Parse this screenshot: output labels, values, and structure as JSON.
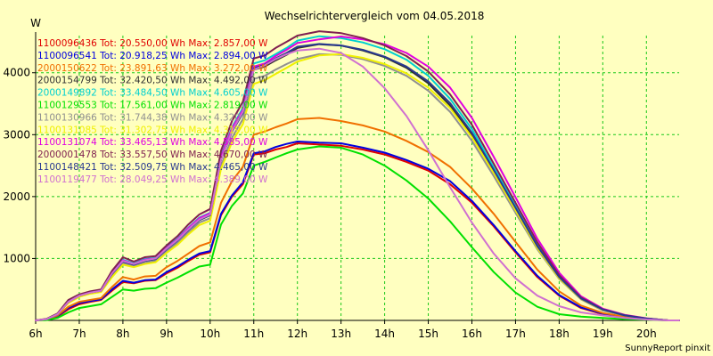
{
  "chart_data": {
    "type": "line",
    "title": "Wechselrichtervergleich vom 04.05.2018",
    "ylabel": "W",
    "footer": "SunnyReport pinxit",
    "x_tick_labels": [
      "6h",
      "7h",
      "8h",
      "9h",
      "10h",
      "11h",
      "12h",
      "13h",
      "14h",
      "15h",
      "16h",
      "17h",
      "18h",
      "19h",
      "20h"
    ],
    "x_range_hours": [
      6.0,
      20.75
    ],
    "y_ticks": [
      1000,
      2000,
      3000,
      4000
    ],
    "ylim": [
      0,
      4600
    ],
    "grid": true,
    "legend_placement": "top-left",
    "x_hours": [
      6.0,
      6.25,
      6.5,
      6.75,
      7.0,
      7.25,
      7.5,
      7.75,
      8.0,
      8.25,
      8.5,
      8.75,
      9.0,
      9.25,
      9.5,
      9.75,
      10.0,
      10.25,
      10.5,
      10.75,
      11.0,
      11.25,
      11.5,
      11.75,
      12.0,
      12.5,
      13.0,
      13.5,
      14.0,
      14.5,
      15.0,
      15.5,
      16.0,
      16.5,
      17.0,
      17.5,
      18.0,
      18.5,
      19.0,
      19.5,
      20.0,
      20.5,
      20.75
    ],
    "series": [
      {
        "legend": "1100096436 Tot: 20.550,00 Wh Max: 2.857,00 W",
        "color": "#e00000",
        "values": [
          0,
          10,
          60,
          180,
          260,
          300,
          330,
          480,
          620,
          600,
          640,
          650,
          760,
          850,
          960,
          1060,
          1100,
          1700,
          2000,
          2200,
          2680,
          2700,
          2760,
          2800,
          2860,
          2840,
          2820,
          2760,
          2680,
          2560,
          2420,
          2200,
          1900,
          1520,
          1100,
          700,
          400,
          200,
          100,
          50,
          20,
          0,
          0
        ]
      },
      {
        "legend": "1100096541 Tot: 20.918,25 Wh Max: 2.894,00 W",
        "color": "#0000e0",
        "values": [
          0,
          15,
          70,
          200,
          280,
          310,
          340,
          500,
          640,
          610,
          650,
          660,
          780,
          870,
          980,
          1080,
          1120,
          1720,
          2020,
          2230,
          2700,
          2730,
          2800,
          2850,
          2890,
          2870,
          2860,
          2790,
          2710,
          2590,
          2450,
          2250,
          1930,
          1540,
          1120,
          720,
          410,
          210,
          110,
          55,
          20,
          0,
          0
        ]
      },
      {
        "legend": "2000150622 Tot: 23.891,63 Wh Max: 3.272,00 W",
        "color": "#f07000",
        "values": [
          0,
          15,
          80,
          220,
          300,
          330,
          360,
          540,
          700,
          660,
          710,
          720,
          860,
          960,
          1080,
          1200,
          1260,
          1900,
          2250,
          2480,
          3000,
          3050,
          3120,
          3180,
          3250,
          3270,
          3220,
          3150,
          3050,
          2900,
          2720,
          2480,
          2130,
          1720,
          1270,
          820,
          470,
          240,
          120,
          60,
          25,
          0,
          0
        ]
      },
      {
        "legend": "2000154799 Tot: 32.420,50 Wh Max: 4.492,00 W",
        "color": "#303030",
        "values": [
          0,
          20,
          100,
          300,
          400,
          450,
          480,
          750,
          950,
          900,
          960,
          990,
          1150,
          1290,
          1460,
          1620,
          1700,
          2600,
          3050,
          3350,
          4050,
          4100,
          4200,
          4290,
          4400,
          4460,
          4440,
          4360,
          4250,
          4080,
          3830,
          3470,
          2990,
          2400,
          1790,
          1180,
          690,
          350,
          170,
          80,
          30,
          0,
          0
        ]
      },
      {
        "legend": "2000149892 Tot: 33.484,50 Wh Max: 4.605,00 W",
        "color": "#00d0d0",
        "values": [
          0,
          20,
          100,
          310,
          410,
          460,
          490,
          770,
          980,
          920,
          990,
          1010,
          1180,
          1320,
          1500,
          1660,
          1740,
          2660,
          3120,
          3430,
          4150,
          4200,
          4300,
          4400,
          4520,
          4590,
          4560,
          4490,
          4380,
          4210,
          3950,
          3580,
          3090,
          2470,
          1850,
          1220,
          710,
          360,
          180,
          80,
          30,
          0,
          0
        ]
      },
      {
        "legend": "1100129553 Tot: 17.561,00 Wh Max: 2.819,00 W",
        "color": "#00e000",
        "values": [
          0,
          5,
          40,
          130,
          200,
          230,
          260,
          380,
          500,
          480,
          510,
          520,
          610,
          690,
          780,
          870,
          900,
          1550,
          1850,
          2050,
          2500,
          2560,
          2630,
          2700,
          2760,
          2810,
          2790,
          2680,
          2500,
          2260,
          1970,
          1600,
          1180,
          780,
          450,
          220,
          100,
          60,
          40,
          20,
          10,
          0,
          0
        ]
      },
      {
        "legend": "1100130966 Tot: 31.744,38 Wh Max: 4.320,00 W",
        "color": "#909090",
        "values": [
          0,
          20,
          100,
          290,
          390,
          440,
          470,
          720,
          920,
          880,
          930,
          960,
          1120,
          1250,
          1420,
          1580,
          1650,
          2500,
          2950,
          3250,
          3900,
          3950,
          4050,
          4140,
          4220,
          4300,
          4290,
          4220,
          4110,
          3950,
          3710,
          3370,
          2900,
          2330,
          1740,
          1150,
          670,
          340,
          160,
          80,
          30,
          0,
          0
        ]
      },
      {
        "legend": "1100131085 Tot: 31.302,75 Wh Max: 4.319,00 W",
        "color": "#f0f000",
        "values": [
          0,
          20,
          100,
          280,
          380,
          430,
          460,
          700,
          900,
          860,
          910,
          940,
          1090,
          1220,
          1390,
          1540,
          1610,
          2450,
          2880,
          3170,
          3820,
          3880,
          3980,
          4080,
          4180,
          4280,
          4300,
          4240,
          4140,
          3990,
          3760,
          3430,
          2960,
          2380,
          1780,
          1170,
          680,
          350,
          170,
          80,
          30,
          0,
          0
        ]
      },
      {
        "legend": "1100131074 Tot: 33.465,13 Wh Max: 4.585,00 W",
        "color": "#e000e0",
        "values": [
          0,
          20,
          100,
          300,
          400,
          450,
          480,
          760,
          970,
          910,
          980,
          1000,
          1170,
          1310,
          1490,
          1650,
          1730,
          2640,
          3100,
          3400,
          4100,
          4150,
          4270,
          4370,
          4480,
          4540,
          4585,
          4540,
          4460,
          4320,
          4100,
          3760,
          3270,
          2640,
          1990,
          1320,
          770,
          390,
          190,
          90,
          35,
          0,
          0
        ]
      },
      {
        "legend": "2000001478 Tot: 33.557,50 Wh Max: 4.670,00 W",
        "color": "#802050",
        "values": [
          0,
          25,
          110,
          330,
          420,
          470,
          500,
          800,
          1020,
          950,
          1020,
          1040,
          1210,
          1360,
          1550,
          1710,
          1800,
          2740,
          3220,
          3530,
          4230,
          4280,
          4400,
          4500,
          4600,
          4670,
          4640,
          4560,
          4440,
          4270,
          4020,
          3650,
          3160,
          2530,
          1900,
          1260,
          730,
          370,
          180,
          85,
          30,
          0,
          0
        ]
      },
      {
        "legend": "1100148421 Tot: 32.509,75 Wh Max: 4.465,00 W",
        "color": "#283890",
        "values": [
          0,
          20,
          100,
          300,
          400,
          450,
          480,
          750,
          950,
          900,
          960,
          990,
          1150,
          1290,
          1460,
          1620,
          1700,
          2600,
          3050,
          3350,
          4070,
          4130,
          4230,
          4320,
          4420,
          4465,
          4440,
          4370,
          4260,
          4100,
          3860,
          3510,
          3030,
          2430,
          1820,
          1200,
          700,
          355,
          175,
          80,
          30,
          0,
          0
        ]
      },
      {
        "legend": "1100119477 Tot: 28.049,25 Wh Max: 4.389,00 W",
        "color": "#d070d0",
        "values": [
          0,
          20,
          100,
          300,
          400,
          450,
          480,
          760,
          960,
          910,
          970,
          1000,
          1160,
          1300,
          1470,
          1630,
          1710,
          2600,
          3060,
          3370,
          4050,
          4120,
          4220,
          4300,
          4360,
          4389,
          4320,
          4100,
          3750,
          3300,
          2750,
          2150,
          1580,
          1080,
          680,
          400,
          230,
          130,
          80,
          40,
          15,
          0,
          0
        ]
      }
    ]
  }
}
